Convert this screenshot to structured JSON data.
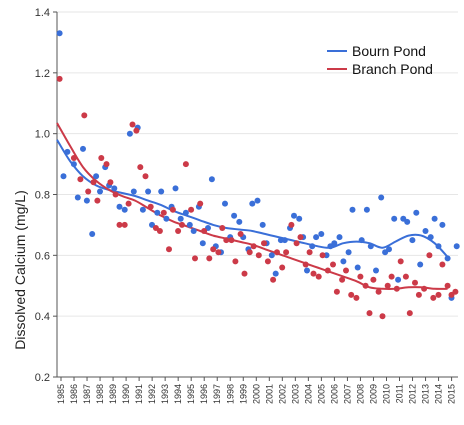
{
  "chart_data": {
    "type": "scatter",
    "ylabel": "Dissolved Calcium (mg/L)",
    "xlabel": "",
    "ylim": [
      0.2,
      1.4
    ],
    "yticks": [
      "0.2",
      "0.4",
      "0.6",
      "0.8",
      "1.0",
      "1.2",
      "1.4"
    ],
    "xlim": [
      1985,
      2015
    ],
    "xticks": [
      "1985",
      "1986",
      "1987",
      "1988",
      "1989",
      "1990",
      "1991",
      "1992",
      "1993",
      "1994",
      "1995",
      "1996",
      "1997",
      "1998",
      "1999",
      "2000",
      "2001",
      "2002",
      "2003",
      "2004",
      "2005",
      "2006",
      "2007",
      "2008",
      "2009",
      "2010",
      "2011",
      "2012",
      "2013",
      "2014",
      "2015"
    ],
    "legend_position": "top-right",
    "series": [
      {
        "name": "Bourn Pond",
        "color": "#3a6fd8",
        "points": [
          [
            1985.2,
            1.33
          ],
          [
            1985.5,
            0.86
          ],
          [
            1985.8,
            0.94
          ],
          [
            1986.3,
            0.9
          ],
          [
            1986.6,
            0.79
          ],
          [
            1987.0,
            0.95
          ],
          [
            1987.3,
            0.78
          ],
          [
            1987.7,
            0.67
          ],
          [
            1988.0,
            0.86
          ],
          [
            1988.3,
            0.81
          ],
          [
            1988.7,
            0.89
          ],
          [
            1989.0,
            0.83
          ],
          [
            1989.4,
            0.82
          ],
          [
            1989.8,
            0.76
          ],
          [
            1990.2,
            0.75
          ],
          [
            1990.6,
            1.0
          ],
          [
            1990.9,
            0.81
          ],
          [
            1991.2,
            1.02
          ],
          [
            1991.6,
            0.75
          ],
          [
            1992.0,
            0.81
          ],
          [
            1992.3,
            0.7
          ],
          [
            1992.7,
            0.74
          ],
          [
            1993.0,
            0.81
          ],
          [
            1993.4,
            0.72
          ],
          [
            1993.8,
            0.76
          ],
          [
            1994.1,
            0.82
          ],
          [
            1994.5,
            0.72
          ],
          [
            1994.9,
            0.74
          ],
          [
            1995.2,
            0.7
          ],
          [
            1995.5,
            0.68
          ],
          [
            1995.9,
            0.76
          ],
          [
            1996.2,
            0.64
          ],
          [
            1996.6,
            0.69
          ],
          [
            1996.9,
            0.85
          ],
          [
            1997.2,
            0.63
          ],
          [
            1997.6,
            0.61
          ],
          [
            1997.9,
            0.77
          ],
          [
            1998.3,
            0.66
          ],
          [
            1998.6,
            0.73
          ],
          [
            1999.0,
            0.71
          ],
          [
            1999.3,
            0.66
          ],
          [
            1999.7,
            0.62
          ],
          [
            2000.0,
            0.77
          ],
          [
            2000.4,
            0.78
          ],
          [
            2000.8,
            0.7
          ],
          [
            2001.1,
            0.64
          ],
          [
            2001.5,
            0.6
          ],
          [
            2001.8,
            0.54
          ],
          [
            2002.2,
            0.65
          ],
          [
            2002.5,
            0.65
          ],
          [
            2002.9,
            0.69
          ],
          [
            2003.2,
            0.73
          ],
          [
            2003.6,
            0.72
          ],
          [
            2003.9,
            0.66
          ],
          [
            2004.2,
            0.55
          ],
          [
            2004.6,
            0.63
          ],
          [
            2004.9,
            0.66
          ],
          [
            2005.3,
            0.67
          ],
          [
            2005.7,
            0.6
          ],
          [
            2006.0,
            0.63
          ],
          [
            2006.3,
            0.64
          ],
          [
            2006.7,
            0.66
          ],
          [
            2007.0,
            0.58
          ],
          [
            2007.4,
            0.61
          ],
          [
            2007.7,
            0.75
          ],
          [
            2008.1,
            0.56
          ],
          [
            2008.4,
            0.65
          ],
          [
            2008.8,
            0.75
          ],
          [
            2009.1,
            0.63
          ],
          [
            2009.5,
            0.55
          ],
          [
            2009.9,
            0.79
          ],
          [
            2010.2,
            0.61
          ],
          [
            2010.5,
            0.62
          ],
          [
            2010.9,
            0.72
          ],
          [
            2011.2,
            0.52
          ],
          [
            2011.6,
            0.72
          ],
          [
            2011.9,
            0.71
          ],
          [
            2012.3,
            0.65
          ],
          [
            2012.6,
            0.74
          ],
          [
            2012.9,
            0.57
          ],
          [
            2013.3,
            0.68
          ],
          [
            2013.7,
            0.66
          ],
          [
            2014.0,
            0.72
          ],
          [
            2014.3,
            0.63
          ],
          [
            2014.6,
            0.7
          ],
          [
            2015.0,
            0.59
          ],
          [
            2015.3,
            0.46
          ],
          [
            2015.7,
            0.63
          ]
        ],
        "trend": [
          [
            1985,
            0.98
          ],
          [
            1986,
            0.91
          ],
          [
            1987,
            0.86
          ],
          [
            1988,
            0.83
          ],
          [
            1989,
            0.815
          ],
          [
            1990,
            0.805
          ],
          [
            1991,
            0.795
          ],
          [
            1992,
            0.78
          ],
          [
            1993,
            0.765
          ],
          [
            1994,
            0.745
          ],
          [
            1995,
            0.73
          ],
          [
            1996,
            0.715
          ],
          [
            1997,
            0.7
          ],
          [
            1998,
            0.69
          ],
          [
            1999,
            0.685
          ],
          [
            2000,
            0.68
          ],
          [
            2001,
            0.67
          ],
          [
            2002,
            0.66
          ],
          [
            2003,
            0.65
          ],
          [
            2004,
            0.64
          ],
          [
            2005,
            0.63
          ],
          [
            2006,
            0.625
          ],
          [
            2007,
            0.64
          ],
          [
            2008,
            0.645
          ],
          [
            2009,
            0.64
          ],
          [
            2010,
            0.625
          ],
          [
            2011,
            0.645
          ],
          [
            2012,
            0.665
          ],
          [
            2013,
            0.665
          ],
          [
            2014,
            0.64
          ],
          [
            2015,
            0.595
          ]
        ]
      },
      {
        "name": "Branch Pond",
        "color": "#cc3a48",
        "points": [
          [
            1985.2,
            1.18
          ],
          [
            1986.3,
            0.92
          ],
          [
            1986.8,
            0.85
          ],
          [
            1987.1,
            1.06
          ],
          [
            1987.4,
            0.81
          ],
          [
            1987.8,
            0.84
          ],
          [
            1988.1,
            0.78
          ],
          [
            1988.4,
            0.92
          ],
          [
            1988.8,
            0.9
          ],
          [
            1989.1,
            0.84
          ],
          [
            1989.5,
            0.8
          ],
          [
            1989.8,
            0.7
          ],
          [
            1990.2,
            0.7
          ],
          [
            1990.5,
            0.77
          ],
          [
            1990.8,
            1.03
          ],
          [
            1991.1,
            1.01
          ],
          [
            1991.4,
            0.89
          ],
          [
            1991.8,
            0.86
          ],
          [
            1992.2,
            0.76
          ],
          [
            1992.6,
            0.69
          ],
          [
            1992.9,
            0.68
          ],
          [
            1993.2,
            0.74
          ],
          [
            1993.6,
            0.62
          ],
          [
            1993.9,
            0.75
          ],
          [
            1994.3,
            0.68
          ],
          [
            1994.6,
            0.7
          ],
          [
            1994.9,
            0.9
          ],
          [
            1995.3,
            0.75
          ],
          [
            1995.6,
            0.59
          ],
          [
            1996.0,
            0.77
          ],
          [
            1996.3,
            0.68
          ],
          [
            1996.7,
            0.59
          ],
          [
            1997.0,
            0.62
          ],
          [
            1997.4,
            0.61
          ],
          [
            1997.7,
            0.69
          ],
          [
            1998.0,
            0.65
          ],
          [
            1998.4,
            0.65
          ],
          [
            1998.7,
            0.58
          ],
          [
            1999.1,
            0.67
          ],
          [
            1999.4,
            0.54
          ],
          [
            1999.8,
            0.61
          ],
          [
            2000.1,
            0.63
          ],
          [
            2000.5,
            0.6
          ],
          [
            2000.9,
            0.64
          ],
          [
            2001.2,
            0.58
          ],
          [
            2001.6,
            0.52
          ],
          [
            2001.9,
            0.61
          ],
          [
            2002.3,
            0.56
          ],
          [
            2002.6,
            0.61
          ],
          [
            2003.0,
            0.7
          ],
          [
            2003.4,
            0.64
          ],
          [
            2003.7,
            0.66
          ],
          [
            2004.1,
            0.57
          ],
          [
            2004.4,
            0.61
          ],
          [
            2004.7,
            0.54
          ],
          [
            2005.1,
            0.53
          ],
          [
            2005.4,
            0.6
          ],
          [
            2005.8,
            0.55
          ],
          [
            2006.2,
            0.57
          ],
          [
            2006.5,
            0.48
          ],
          [
            2006.9,
            0.52
          ],
          [
            2007.2,
            0.55
          ],
          [
            2007.6,
            0.47
          ],
          [
            2008.0,
            0.46
          ],
          [
            2008.3,
            0.53
          ],
          [
            2008.7,
            0.5
          ],
          [
            2009.0,
            0.41
          ],
          [
            2009.3,
            0.52
          ],
          [
            2009.7,
            0.48
          ],
          [
            2010.0,
            0.4
          ],
          [
            2010.4,
            0.5
          ],
          [
            2010.7,
            0.53
          ],
          [
            2011.1,
            0.49
          ],
          [
            2011.4,
            0.58
          ],
          [
            2011.8,
            0.53
          ],
          [
            2012.1,
            0.41
          ],
          [
            2012.5,
            0.51
          ],
          [
            2012.8,
            0.47
          ],
          [
            2013.2,
            0.49
          ],
          [
            2013.6,
            0.6
          ],
          [
            2013.9,
            0.46
          ],
          [
            2014.3,
            0.47
          ],
          [
            2014.6,
            0.57
          ],
          [
            2015.0,
            0.5
          ],
          [
            2015.3,
            0.47
          ],
          [
            2015.6,
            0.48
          ]
        ],
        "trend": [
          [
            1985,
            1.035
          ],
          [
            1986,
            0.96
          ],
          [
            1987,
            0.89
          ],
          [
            1988,
            0.845
          ],
          [
            1989,
            0.815
          ],
          [
            1990,
            0.795
          ],
          [
            1991,
            0.78
          ],
          [
            1992,
            0.755
          ],
          [
            1993,
            0.73
          ],
          [
            1994,
            0.71
          ],
          [
            1995,
            0.695
          ],
          [
            1996,
            0.68
          ],
          [
            1997,
            0.665
          ],
          [
            1998,
            0.655
          ],
          [
            1999,
            0.645
          ],
          [
            2000,
            0.635
          ],
          [
            2001,
            0.62
          ],
          [
            2002,
            0.605
          ],
          [
            2003,
            0.59
          ],
          [
            2004,
            0.575
          ],
          [
            2005,
            0.56
          ],
          [
            2006,
            0.545
          ],
          [
            2007,
            0.53
          ],
          [
            2008,
            0.515
          ],
          [
            2009,
            0.495
          ],
          [
            2010,
            0.49
          ],
          [
            2011,
            0.49
          ],
          [
            2012,
            0.495
          ],
          [
            2013,
            0.495
          ],
          [
            2014,
            0.49
          ],
          [
            2015,
            0.49
          ]
        ]
      }
    ]
  }
}
